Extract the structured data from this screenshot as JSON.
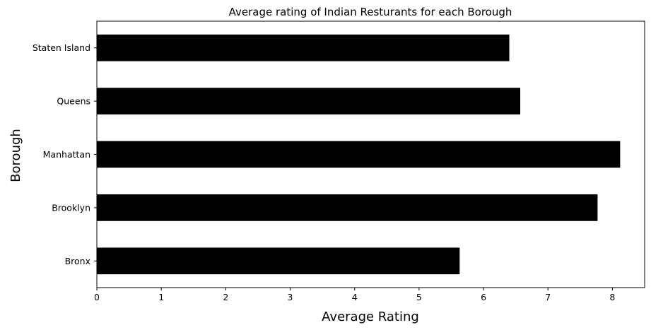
{
  "chart_data": {
    "type": "bar",
    "orientation": "horizontal",
    "title": "Average rating of Indian Resturants for each Borough",
    "xlabel": "Average Rating",
    "ylabel": "Borough",
    "categories": [
      "Bronx",
      "Brooklyn",
      "Manhattan",
      "Queens",
      "Staten Island"
    ],
    "values": [
      5.63,
      7.77,
      8.12,
      6.57,
      6.4
    ],
    "xlim": [
      0,
      8.5
    ],
    "xticks": [
      0,
      1,
      2,
      3,
      4,
      5,
      6,
      7,
      8
    ],
    "bar_color": "#000000",
    "grid": false,
    "legend": false
  }
}
